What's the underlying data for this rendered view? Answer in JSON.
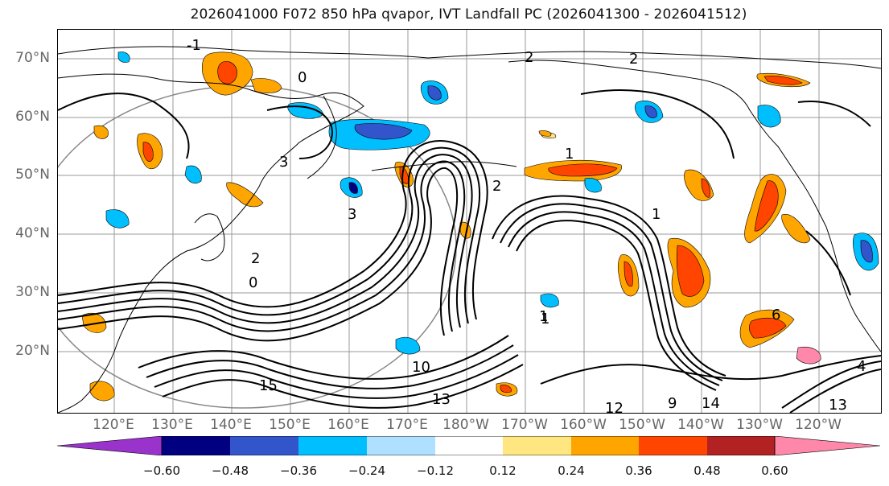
{
  "title": "2026041000 F072 850 hPa qvapor, IVT Landfall PC (2026041300 - 2026041512)",
  "lat_labels": [
    "70°N",
    "60°N",
    "50°N",
    "40°N",
    "30°N",
    "20°N"
  ],
  "lon_labels": [
    "120°E",
    "130°E",
    "140°E",
    "150°E",
    "160°E",
    "170°E",
    "180°W",
    "170°W",
    "160°W",
    "150°W",
    "140°W",
    "130°W",
    "120°W"
  ],
  "colorbar": {
    "ticks": [
      "−0.60",
      "−0.48",
      "−0.36",
      "−0.24",
      "−0.12",
      "0.12",
      "0.24",
      "0.36",
      "0.48",
      "0.60"
    ],
    "colors": [
      "#9933cc",
      "#000080",
      "#3355cc",
      "#00bfff",
      "#b0e0ff",
      "#ffffff",
      "#ffe680",
      "#ffa500",
      "#ff4500",
      "#b22222",
      "#ff88aa"
    ]
  },
  "contour_labels": [
    "-1",
    "0",
    "2",
    "1",
    "3",
    "3",
    "2",
    "1",
    "2",
    "2",
    "0",
    "13",
    "12",
    "14",
    "15",
    "13",
    "4",
    "6",
    "9",
    "10",
    "1",
    "1"
  ],
  "palette": {
    "orange": "#ffa500",
    "red": "#ff4500",
    "darkred": "#b22222",
    "yellow": "#ffe680",
    "blue": "#00bfff",
    "royal": "#3355cc",
    "navy": "#000080",
    "lightblue": "#b0e0ff"
  }
}
